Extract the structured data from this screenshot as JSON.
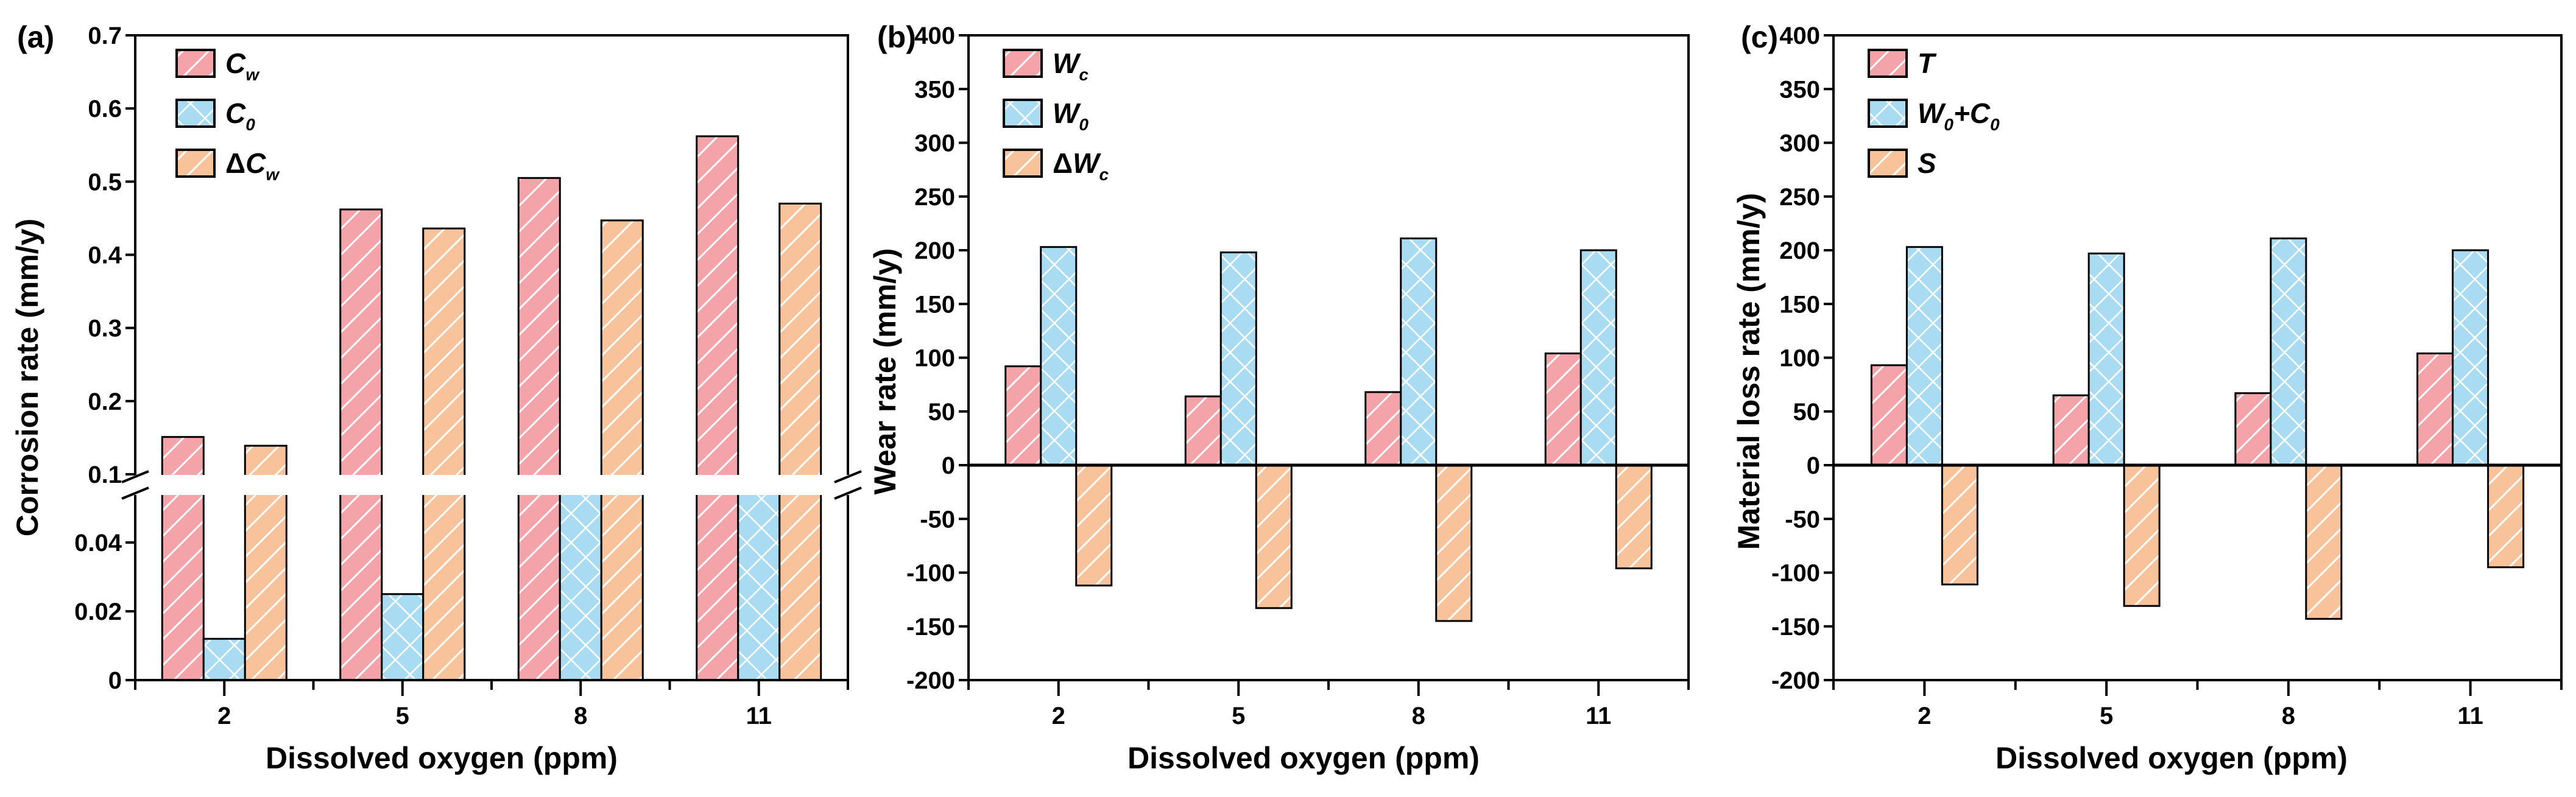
{
  "colors": {
    "red_fill": "#f4a3a8",
    "red_stroke": "#d26068",
    "blue_fill": "#a9dcf2",
    "blue_stroke": "#3a95c8",
    "orange_fill": "#f8c39a",
    "orange_stroke": "#d38a55",
    "axis": "#000000"
  },
  "chart_data": [
    {
      "type": "bar",
      "panel_label": "(a)",
      "xlabel": "Dissolved oxygen (ppm)",
      "ylabel": "Corrosion rate (mm/y)",
      "categories": [
        "2",
        "5",
        "8",
        "11"
      ],
      "axis_break": {
        "lower": [
          0,
          0.06
        ],
        "upper": [
          0.07,
          0.7
        ]
      },
      "y_ticks_lower": [
        "0",
        "0.02",
        "0.04"
      ],
      "y_ticks_upper": [
        "0.1",
        "0.2",
        "0.3",
        "0.4",
        "0.5",
        "0.6",
        "0.7"
      ],
      "series": [
        {
          "name": "Cw",
          "label_main": "C",
          "label_sub": "w",
          "label_prefix": "",
          "values": [
            0.151,
            0.462,
            0.505,
            0.562
          ],
          "style": "red"
        },
        {
          "name": "C0",
          "label_main": "C",
          "label_sub": "0",
          "label_prefix": "",
          "values": [
            0.012,
            0.025,
            0.059,
            0.096
          ],
          "style": "blue"
        },
        {
          "name": "ΔCw",
          "label_main": "C",
          "label_sub": "w",
          "label_prefix": "Δ",
          "values": [
            0.139,
            0.436,
            0.447,
            0.47
          ],
          "style": "orange"
        }
      ]
    },
    {
      "type": "bar",
      "panel_label": "(b)",
      "xlabel": "Dissolved oxygen (ppm)",
      "ylabel": "Wear rate (mm/y)",
      "categories": [
        "2",
        "5",
        "8",
        "11"
      ],
      "ylim": [
        -200,
        400
      ],
      "y_ticks": [
        "-200",
        "-150",
        "-100",
        "-50",
        "0",
        "50",
        "100",
        "150",
        "200",
        "250",
        "300",
        "350",
        "400"
      ],
      "series": [
        {
          "name": "Wc",
          "label_main": "W",
          "label_sub": "c",
          "label_prefix": "",
          "values": [
            92,
            64,
            68,
            104
          ],
          "style": "red"
        },
        {
          "name": "W0",
          "label_main": "W",
          "label_sub": "0",
          "label_prefix": "",
          "values": [
            203,
            198,
            211,
            200
          ],
          "style": "blue"
        },
        {
          "name": "ΔWc",
          "label_main": "W",
          "label_sub": "c",
          "label_prefix": "Δ",
          "values": [
            -112,
            -133,
            -145,
            -96
          ],
          "style": "orange"
        }
      ]
    },
    {
      "type": "bar",
      "panel_label": "(c)",
      "xlabel": "Dissolved oxygen (ppm)",
      "ylabel": "Material loss rate (mm/y)",
      "categories": [
        "2",
        "5",
        "8",
        "11"
      ],
      "ylim": [
        -200,
        400
      ],
      "y_ticks": [
        "-200",
        "-150",
        "-100",
        "-50",
        "0",
        "50",
        "100",
        "150",
        "200",
        "250",
        "300",
        "350",
        "400"
      ],
      "series": [
        {
          "name": "T",
          "label_main": "T",
          "label_sub": "",
          "label_prefix": "",
          "values": [
            93,
            65,
            67,
            104
          ],
          "style": "red"
        },
        {
          "name": "W0+C0",
          "label_main": "W",
          "label_sub": "0",
          "label_prefix": "",
          "label_suffix_main": "+C",
          "label_suffix_sub": "0",
          "values": [
            203,
            197,
            211,
            200
          ],
          "style": "blue"
        },
        {
          "name": "S",
          "label_main": "S",
          "label_sub": "",
          "label_prefix": "",
          "values": [
            -111,
            -131,
            -143,
            -95
          ],
          "style": "orange"
        }
      ]
    }
  ]
}
